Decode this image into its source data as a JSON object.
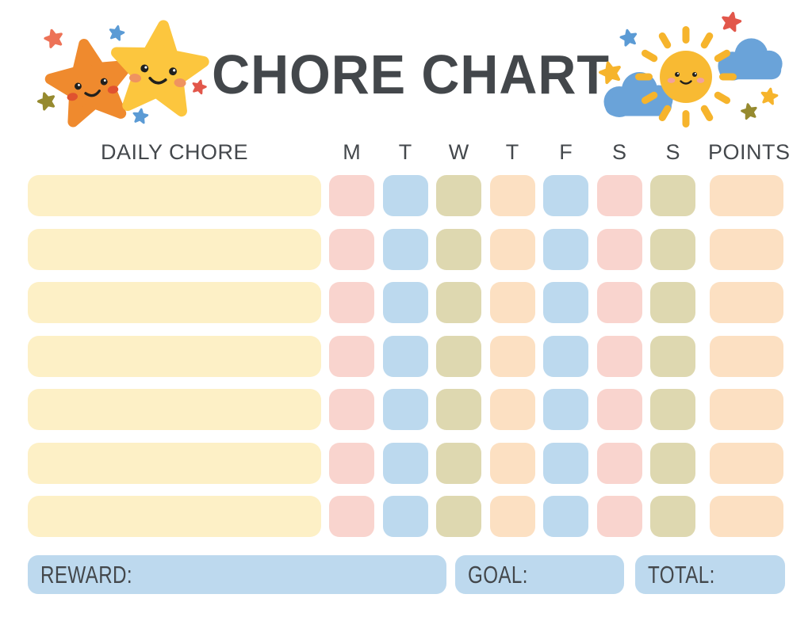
{
  "title": "CHORE CHART",
  "table": {
    "chore_header": "DAILY CHORE",
    "day_headers": [
      "M",
      "T",
      "W",
      "T",
      "F",
      "S",
      "S"
    ],
    "points_header": "POINTS",
    "row_count": 7,
    "chore_cell_color": "cream",
    "day_cell_colors": [
      "pink",
      "blue",
      "olive",
      "peach",
      "blue",
      "pink",
      "olive"
    ],
    "points_cell_color": "peach"
  },
  "footer": {
    "reward_label": "REWARD:",
    "goal_label": "GOAL:",
    "total_label": "TOTAL:"
  },
  "palette": {
    "text": "#44484c",
    "cream": "#fdf0c6",
    "pink": "#f9d4ce",
    "blue": "#bcd9ee",
    "olive": "#ded8b0",
    "peach": "#fce0c2",
    "footer_box": "#bdd9ee",
    "orange_star": "#ef8a2e",
    "yellow_star": "#fcc63e",
    "small_blue_star": "#5b9bd5",
    "small_salmon_star": "#ed7257",
    "small_red_star": "#e2574b",
    "small_olive_star": "#968a2f",
    "small_yellow_star": "#f6b42c",
    "sun": "#f8ba33",
    "sun_rays": "#f6b42c",
    "cloud": "#6aa3d9"
  },
  "decorations": {
    "left": [
      "orange-star-icon",
      "yellow-star-icon",
      "small-star-icons"
    ],
    "right": [
      "sun-icon",
      "cloud-icons",
      "small-star-icons"
    ]
  }
}
